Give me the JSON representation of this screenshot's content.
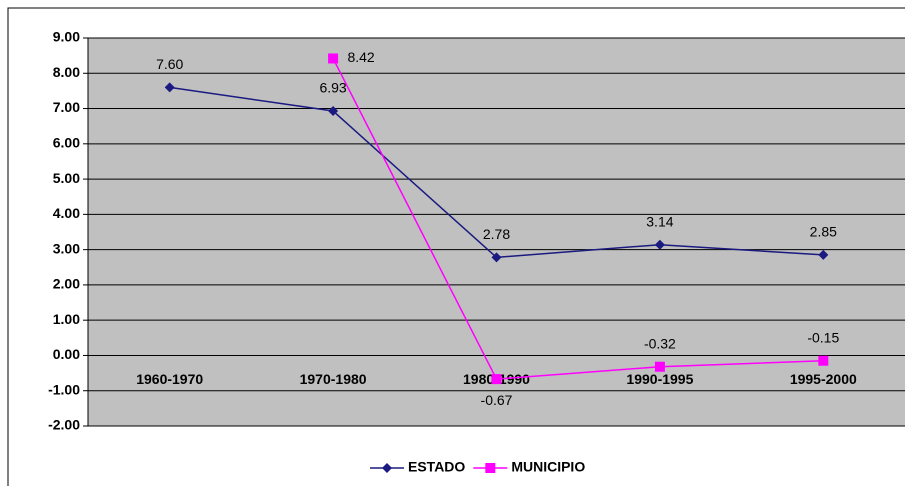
{
  "chart_data": {
    "type": "line",
    "categories": [
      "1960-1970",
      "1970-1980",
      "1980-1990",
      "1990-1995",
      "1995-2000"
    ],
    "series": [
      {
        "name": "ESTADO",
        "color": "#1a1a80",
        "marker": "diamond",
        "values": [
          7.6,
          6.93,
          2.78,
          3.14,
          2.85
        ],
        "value_labels": [
          "7.60",
          "6.93",
          "2.78",
          "3.14",
          "2.85"
        ]
      },
      {
        "name": "MUNICIPIO",
        "color": "#ff00ff",
        "marker": "square",
        "values": [
          null,
          8.42,
          -0.67,
          -0.32,
          -0.15
        ],
        "value_labels": [
          null,
          "8.42",
          "-0.67",
          "-0.32",
          "-0.15"
        ]
      }
    ],
    "ylim": [
      -2,
      9
    ],
    "yticks": [
      {
        "value": -2,
        "label": "-2.00"
      },
      {
        "value": -1,
        "label": "-1.00"
      },
      {
        "value": 0,
        "label": "0.00"
      },
      {
        "value": 1,
        "label": "1.00"
      },
      {
        "value": 2,
        "label": "2.00"
      },
      {
        "value": 3,
        "label": "3.00"
      },
      {
        "value": 4,
        "label": "4.00"
      },
      {
        "value": 5,
        "label": "5.00"
      },
      {
        "value": 6,
        "label": "6.00"
      },
      {
        "value": 7,
        "label": "7.00"
      },
      {
        "value": 8,
        "label": "8.00"
      },
      {
        "value": 9,
        "label": "9.00"
      }
    ],
    "grid": true,
    "legend": "bottom",
    "plot_background": "#c0c0c0"
  }
}
